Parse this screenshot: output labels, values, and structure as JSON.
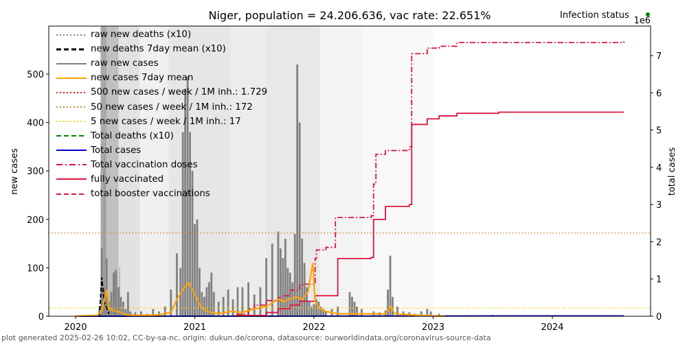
{
  "title": "Niger, population = 24.206.636, vac rate: 22.651%",
  "status_label": "Infection status",
  "status_color": "#008000",
  "footer": "plot generated 2025-02-26 10:02, CC-by-sa-nc, origin: dukun.de/corona, datasource: ourworldindata.org/coronavirus-source-data",
  "chart_data": {
    "type": "line",
    "title": "Niger, population = 24.206.636, vac rate: 22.651%",
    "xlabel": "",
    "ylabel": "new cases",
    "y2label": "total cases",
    "y2_offset_label": "1e6",
    "xlim": [
      2019.8,
      2024.85
    ],
    "ylim": [
      0,
      600
    ],
    "y2lim": [
      0,
      7.8
    ],
    "x_ticks": [
      2020,
      2021,
      2022,
      2023,
      2024
    ],
    "x_tick_labels": [
      "2020",
      "2021",
      "2022",
      "2023",
      "2024"
    ],
    "y_ticks": [
      0,
      100,
      200,
      300,
      400,
      500
    ],
    "y_tick_labels": [
      "0",
      "100",
      "200",
      "300",
      "400",
      "500"
    ],
    "y2_ticks": [
      0,
      1,
      2,
      3,
      4,
      5,
      6,
      7
    ],
    "y2_tick_labels": [
      "0",
      "1",
      "2",
      "3",
      "4",
      "5",
      "6",
      "7"
    ],
    "grid": false,
    "legend_position": "top-left",
    "legend": [
      {
        "label": "raw new deaths (x10)",
        "color": "#808080",
        "style": "dotted"
      },
      {
        "label": "new deaths 7day mean (x10)",
        "color": "#000000",
        "style": "dashed"
      },
      {
        "label": "raw new cases",
        "color": "#808080",
        "style": "solid"
      },
      {
        "label": "new cases 7day mean",
        "color": "#ffa500",
        "style": "solid"
      },
      {
        "label": "500 new cases / week / 1M inh.: 1.729",
        "color": "#ff0000",
        "style": "dotted"
      },
      {
        "label": "50 new cases / week / 1M inh.: 172",
        "color": "#cd853f",
        "style": "dotted"
      },
      {
        "label": "5 new cases / week / 1M inh.: 17",
        "color": "#ffd700",
        "style": "dotted"
      },
      {
        "label": "Total deaths (x10)",
        "color": "#008000",
        "style": "dashed"
      },
      {
        "label": "Total cases",
        "color": "#0000cd",
        "style": "solid"
      },
      {
        "label": "Total vaccination doses",
        "color": "#dc143c",
        "style": "dashdot"
      },
      {
        "label": "fully vaccinated",
        "color": "#dc143c",
        "style": "solid"
      },
      {
        "label": "total booster vaccinations",
        "color": "#dc143c",
        "style": "dashed"
      }
    ],
    "thresholds": [
      {
        "name": "500/week/1M",
        "value": 1729,
        "color": "#ff0000"
      },
      {
        "name": "50/week/1M",
        "value": 172,
        "color": "#cd853f"
      },
      {
        "name": "5/week/1M",
        "value": 17,
        "color": "#ffd700"
      }
    ],
    "raw_new_cases": {
      "x": [
        2020.2,
        2020.22,
        2020.24,
        2020.26,
        2020.28,
        2020.3,
        2020.32,
        2020.34,
        2020.36,
        2020.38,
        2020.4,
        2020.42,
        2020.44,
        2020.46,
        2020.5,
        2020.55,
        2020.6,
        2020.65,
        2020.7,
        2020.75,
        2020.8,
        2020.85,
        2020.88,
        2020.9,
        2020.92,
        2020.94,
        2020.96,
        2020.98,
        2021.0,
        2021.02,
        2021.04,
        2021.06,
        2021.08,
        2021.1,
        2021.12,
        2021.14,
        2021.16,
        2021.2,
        2021.24,
        2021.28,
        2021.32,
        2021.36,
        2021.4,
        2021.45,
        2021.5,
        2021.55,
        2021.6,
        2021.65,
        2021.7,
        2021.72,
        2021.74,
        2021.76,
        2021.78,
        2021.8,
        2021.82,
        2021.84,
        2021.86,
        2021.88,
        2021.9,
        2021.92,
        2021.94,
        2021.96,
        2021.98,
        2022.0,
        2022.02,
        2022.04,
        2022.06,
        2022.08,
        2022.1,
        2022.15,
        2022.2,
        2022.3,
        2022.32,
        2022.34,
        2022.36,
        2022.4,
        2022.5,
        2022.55,
        2022.6,
        2022.62,
        2022.64,
        2022.66,
        2022.7,
        2022.75,
        2022.8,
        2022.85,
        2022.9,
        2022.95,
        2022.98,
        2023.05,
        2023.5,
        2024.4
      ],
      "values": [
        20,
        140,
        60,
        120,
        30,
        50,
        90,
        95,
        60,
        40,
        30,
        15,
        50,
        10,
        8,
        10,
        5,
        15,
        10,
        20,
        55,
        130,
        100,
        380,
        470,
        495,
        380,
        300,
        190,
        200,
        100,
        50,
        40,
        60,
        70,
        90,
        50,
        30,
        40,
        55,
        35,
        60,
        60,
        70,
        45,
        60,
        120,
        150,
        175,
        140,
        120,
        160,
        100,
        90,
        70,
        170,
        520,
        400,
        160,
        110,
        60,
        30,
        20,
        25,
        35,
        30,
        20,
        15,
        10,
        15,
        20,
        50,
        40,
        30,
        20,
        15,
        10,
        8,
        12,
        55,
        125,
        40,
        20,
        10,
        8,
        5,
        10,
        15,
        10,
        5,
        3,
        2
      ],
      "color": "#808080"
    },
    "new_cases_7day_mean": {
      "x": [
        2020.0,
        2020.18,
        2020.22,
        2020.26,
        2020.28,
        2020.32,
        2020.38,
        2020.42,
        2020.5,
        2020.6,
        2020.7,
        2020.8,
        2020.85,
        2020.9,
        2020.95,
        2020.98,
        2021.05,
        2021.1,
        2021.2,
        2021.3,
        2021.4,
        2021.5,
        2021.6,
        2021.7,
        2021.75,
        2021.8,
        2021.85,
        2021.9,
        2021.95,
        2021.99,
        2022.01,
        2022.05,
        2022.1,
        2022.2,
        2022.3,
        2022.4,
        2022.5,
        2022.6,
        2022.64,
        2022.68,
        2022.8,
        2022.9,
        2023.0,
        2023.1
      ],
      "values": [
        0,
        2,
        10,
        55,
        15,
        12,
        8,
        3,
        2,
        2,
        3,
        8,
        35,
        55,
        70,
        55,
        20,
        10,
        5,
        10,
        8,
        15,
        20,
        35,
        30,
        35,
        40,
        35,
        50,
        110,
        30,
        15,
        10,
        5,
        5,
        5,
        5,
        5,
        20,
        5,
        3,
        2,
        1,
        0
      ],
      "color": "#ffa500"
    },
    "new_deaths_7day_mean_x10": {
      "x": [
        2020.2,
        2020.22,
        2020.24,
        2020.28
      ],
      "values": [
        0,
        80,
        30,
        5
      ],
      "color": "#000000"
    },
    "raw_new_deaths_x10": {
      "x": [
        2020.24,
        2020.33,
        2020.37
      ],
      "values": [
        330,
        95,
        100
      ],
      "color": "#808080"
    },
    "total_vaccination_doses": {
      "unit": "1e6",
      "x": [
        2021.35,
        2021.45,
        2021.5,
        2021.6,
        2021.7,
        2021.75,
        2021.8,
        2021.88,
        2021.92,
        2022.01,
        2022.02,
        2022.1,
        2022.18,
        2022.48,
        2022.5,
        2022.52,
        2022.6,
        2022.8,
        2022.82,
        2022.95,
        2023.05,
        2023.2,
        2024.6
      ],
      "values": [
        0.05,
        0.2,
        0.3,
        0.42,
        0.5,
        0.55,
        0.7,
        0.85,
        0.86,
        1.55,
        1.78,
        1.85,
        2.65,
        2.7,
        3.55,
        4.35,
        4.45,
        4.55,
        7.05,
        7.2,
        7.25,
        7.35,
        7.38
      ],
      "color": "#dc143c"
    },
    "fully_vaccinated": {
      "unit": "1e6",
      "x": [
        2021.35,
        2021.6,
        2021.7,
        2021.8,
        2021.88,
        2022.01,
        2022.2,
        2022.48,
        2022.5,
        2022.6,
        2022.8,
        2022.82,
        2022.95,
        2023.05,
        2023.2,
        2023.55,
        2024.6
      ],
      "values": [
        0.02,
        0.1,
        0.2,
        0.3,
        0.4,
        0.55,
        1.55,
        1.58,
        2.6,
        2.95,
        3.0,
        5.15,
        5.3,
        5.38,
        5.45,
        5.48,
        5.48
      ],
      "color": "#dc143c"
    },
    "total_cases": {
      "unit": "1e6",
      "x": [
        2020.0,
        2024.6
      ],
      "values": [
        0.0,
        0.01
      ],
      "color": "#0000cd"
    },
    "background_bands": [
      {
        "x0": 2020.21,
        "x1": 2020.26,
        "shade": "#a9a9a9"
      },
      {
        "x0": 2020.26,
        "x1": 2020.36,
        "shade": "#c0c0c0"
      },
      {
        "x0": 2020.36,
        "x1": 2020.54,
        "shade": "#e2e2e2"
      },
      {
        "x0": 2020.54,
        "x1": 2020.78,
        "shade": "#f0f0f0"
      },
      {
        "x0": 2020.78,
        "x1": 2021.3,
        "shade": "#e6e6e6"
      },
      {
        "x0": 2021.3,
        "x1": 2021.6,
        "shade": "#ececec"
      },
      {
        "x0": 2021.6,
        "x1": 2022.05,
        "shade": "#e8e8e8"
      },
      {
        "x0": 2022.05,
        "x1": 2022.4,
        "shade": "#f3f3f3"
      },
      {
        "x0": 2022.4,
        "x1": 2023.0,
        "shade": "#f8f8f8"
      }
    ]
  }
}
